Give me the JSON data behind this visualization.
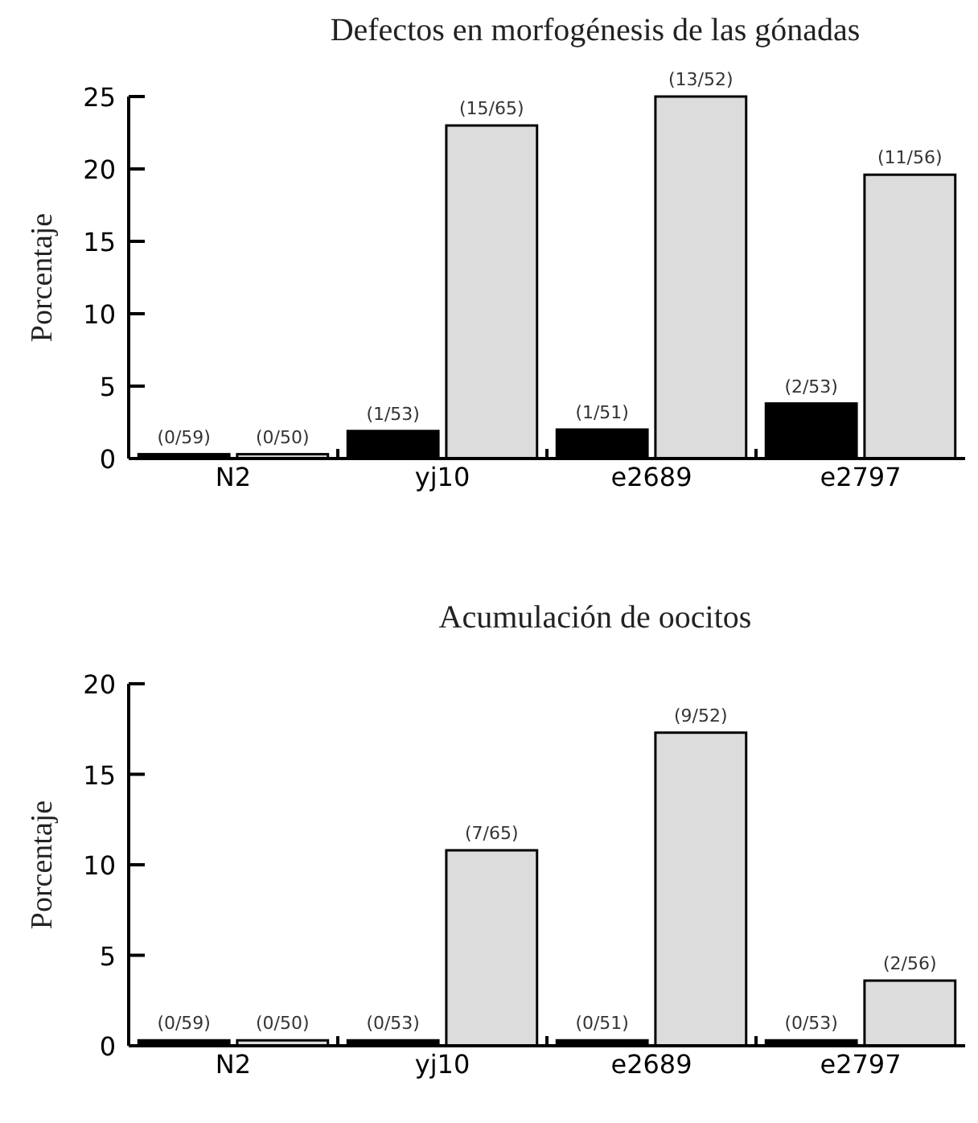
{
  "chart_data": [
    {
      "type": "bar",
      "title": "Defectos en morfogénesis de las gónadas",
      "ylabel": "Porcentaje",
      "categories": [
        "N2",
        "yj10",
        "e2689",
        "e2797"
      ],
      "series": [
        {
          "color": "#000000",
          "values": [
            0.3,
            1.9,
            2,
            3.8
          ],
          "value_labels": [
            "(0/59)",
            "(1/53)",
            "(1/51)",
            "(2/53)"
          ]
        },
        {
          "color": "#dcdcdc",
          "values": [
            0.3,
            23,
            25,
            19.6
          ],
          "value_labels": [
            "(0/50)",
            "(15/65)",
            "(13/52)",
            "(11/56)"
          ]
        }
      ],
      "ylim": [
        0,
        25
      ],
      "yticks": [
        0,
        5,
        10,
        15,
        20,
        25
      ]
    },
    {
      "type": "bar",
      "title": "Acumulación de oocitos",
      "ylabel": "Porcentaje",
      "categories": [
        "N2",
        "yj10",
        "e2689",
        "e2797"
      ],
      "series": [
        {
          "color": "#000000",
          "values": [
            0.3,
            0.3,
            0.3,
            0.3
          ],
          "value_labels": [
            "(0/59)",
            "(0/53)",
            "(0/51)",
            "(0/53)"
          ]
        },
        {
          "color": "#dcdcdc",
          "values": [
            0.3,
            10.8,
            17.3,
            3.6
          ],
          "value_labels": [
            "(0/50)",
            "(7/65)",
            "(9/52)",
            "(2/56)"
          ]
        }
      ],
      "ylim": [
        0,
        20
      ],
      "yticks": [
        0,
        5,
        10,
        15,
        20
      ]
    }
  ]
}
